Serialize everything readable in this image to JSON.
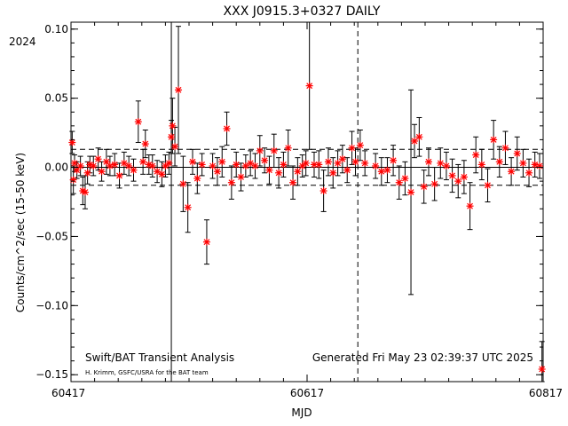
{
  "chart_data": {
    "type": "scatter",
    "title": "XXX J0915.3+0327 DAILY",
    "year_label": "2024",
    "xlabel": "MJD",
    "ylabel": "Counts/cm^2/sec (15-50 keV)",
    "xlim": [
      60417,
      60817
    ],
    "ylim": [
      -0.155,
      0.105
    ],
    "x_tick_labels": [
      "60417",
      "60617",
      "60817"
    ],
    "y_tick_labels": [
      "0.10",
      "0.05",
      "0.00",
      "−0.05",
      "−0.10",
      "−0.15"
    ],
    "y_ticks": [
      0.1,
      0.05,
      0.0,
      -0.05,
      -0.1,
      -0.15
    ],
    "x_ticks": [
      60417,
      60617,
      60817
    ],
    "mean_line": 0.0,
    "sigma_lines": [
      0.013,
      -0.013
    ],
    "solid_vline_x": 60502,
    "dashed_vline_x": 60660,
    "footer_left": "Swift/BAT Transient Analysis",
    "footer_left_sub": "H. Krimm, GSFC/USRA for the BAT team",
    "footer_right": "Generated Fri May 23 02:39:37 UTC 2025",
    "marker_color": "#ff0000",
    "series": [
      {
        "x": [
          60418,
          60419,
          60420,
          60422,
          60425,
          60427,
          60429,
          60431,
          60433,
          60436,
          60440,
          60443,
          60447,
          60450,
          60454,
          60458,
          60462,
          60466,
          60470,
          60474,
          60478,
          60480,
          60483,
          60486,
          60490,
          60494,
          60497,
          60500,
          60502,
          60503,
          60505,
          60508,
          60512,
          60516,
          60520,
          60524,
          60528,
          60532,
          60537,
          60541,
          60545,
          60549,
          60553,
          60557,
          60561,
          60565,
          60569,
          60573,
          60577,
          60581,
          60585,
          60589,
          60593,
          60597,
          60601,
          60605,
          60609,
          60613,
          60616,
          60619,
          60623,
          60627,
          60631,
          60635,
          60639,
          60643,
          60647,
          60651,
          60655,
          60658,
          60662,
          60666,
          60675,
          60680,
          60685,
          60690,
          60695,
          60700,
          60705,
          60708,
          60712,
          60716,
          60720,
          60725,
          60730,
          60735,
          60740,
          60745,
          60750,
          60755,
          60760,
          60765,
          60770,
          60775,
          60780,
          60785,
          60790,
          60795,
          60800,
          60805,
          60810,
          60814,
          60816
        ],
        "y": [
          0.018,
          -0.009,
          0.003,
          -0.002,
          0.001,
          -0.017,
          -0.018,
          -0.004,
          0.002,
          0.001,
          0.006,
          -0.003,
          0.004,
          0.001,
          0.002,
          -0.006,
          0.003,
          0.001,
          -0.002,
          0.033,
          0.004,
          0.017,
          0.002,
          0.001,
          -0.003,
          -0.005,
          0.001,
          0.003,
          0.022,
          0.03,
          0.015,
          0.056,
          -0.012,
          -0.029,
          0.004,
          -0.008,
          0.002,
          -0.054,
          0.001,
          -0.003,
          0.004,
          0.028,
          -0.011,
          0.002,
          -0.007,
          0.001,
          0.003,
          0.001,
          0.012,
          0.005,
          -0.002,
          0.012,
          -0.004,
          0.002,
          0.014,
          -0.011,
          -0.003,
          0.001,
          0.003,
          0.059,
          0.002,
          0.002,
          -0.017,
          0.004,
          -0.004,
          0.003,
          0.006,
          -0.002,
          0.014,
          0.004,
          0.016,
          0.003,
          0.001,
          -0.003,
          -0.002,
          0.005,
          -0.011,
          -0.008,
          -0.018,
          0.019,
          0.022,
          -0.014,
          0.004,
          -0.012,
          0.003,
          0.001,
          -0.006,
          -0.01,
          -0.007,
          -0.028,
          0.009,
          0.002,
          -0.013,
          0.02,
          0.004,
          0.014,
          -0.003,
          0.01,
          0.003,
          -0.004,
          0.002,
          0.001,
          -0.146
        ],
        "err": [
          0.008,
          0.01,
          0.006,
          0.006,
          0.007,
          0.01,
          0.012,
          0.008,
          0.006,
          0.007,
          0.008,
          0.007,
          0.009,
          0.007,
          0.008,
          0.009,
          0.008,
          0.007,
          0.008,
          0.015,
          0.009,
          0.01,
          0.007,
          0.008,
          0.008,
          0.009,
          0.008,
          0.008,
          0.012,
          0.02,
          0.014,
          0.046,
          0.02,
          0.018,
          0.009,
          0.011,
          0.008,
          0.016,
          0.009,
          0.01,
          0.011,
          0.012,
          0.012,
          0.009,
          0.01,
          0.008,
          0.009,
          0.009,
          0.011,
          0.009,
          0.01,
          0.012,
          0.011,
          0.009,
          0.013,
          0.012,
          0.01,
          0.008,
          0.009,
          0.046,
          0.009,
          0.01,
          0.015,
          0.01,
          0.011,
          0.009,
          0.01,
          0.009,
          0.012,
          0.01,
          0.011,
          0.009,
          0.009,
          0.01,
          0.009,
          0.011,
          0.012,
          0.012,
          0.074,
          0.012,
          0.014,
          0.012,
          0.01,
          0.012,
          0.011,
          0.01,
          0.012,
          0.012,
          0.012,
          0.017,
          0.013,
          0.011,
          0.012,
          0.014,
          0.011,
          0.012,
          0.01,
          0.012,
          0.01,
          0.01,
          0.009,
          0.009,
          0.02
        ]
      }
    ]
  }
}
